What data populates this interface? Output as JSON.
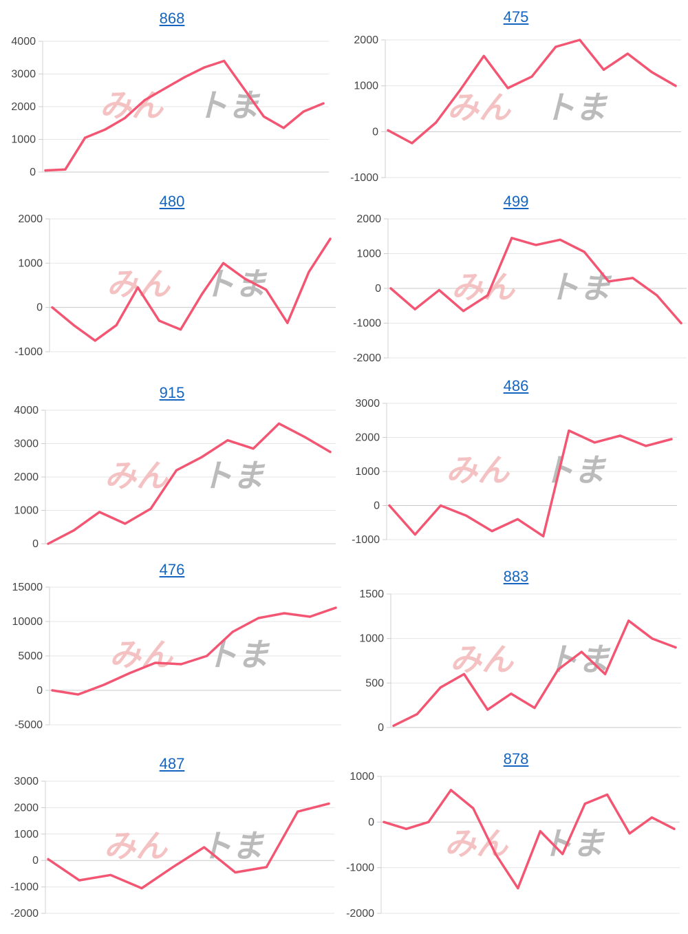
{
  "style": {
    "line_color": "#f25673",
    "grid_color": "#e6e6e6",
    "title_color": "#1565c0",
    "watermark_pink": "#f3b8b8",
    "watermark_gray": "#b0b0b0"
  },
  "watermark": {
    "part1": "みん",
    "part2": "ト",
    "part3": "ま"
  },
  "chart_data": [
    {
      "type": "line",
      "title": "868",
      "ylim": [
        0,
        4000
      ],
      "yticks": [
        "4000",
        "3000",
        "2000",
        "1000",
        "0"
      ],
      "series": [
        {
          "values": [
            50,
            80,
            1050,
            1300,
            1650,
            2200,
            2550,
            2900,
            3200,
            3400,
            2550,
            1700,
            1350,
            1850,
            2100
          ]
        }
      ]
    },
    {
      "type": "line",
      "title": "475",
      "ylim": [
        -1000,
        2000
      ],
      "yticks": [
        "2000",
        "1000",
        "0",
        "-1000"
      ],
      "series": [
        {
          "values": [
            30,
            -250,
            200,
            900,
            1650,
            950,
            1200,
            1850,
            2000,
            1350,
            1700,
            1300,
            1000
          ]
        }
      ]
    },
    {
      "type": "line",
      "title": "480",
      "ylim": [
        -1000,
        2000
      ],
      "yticks": [
        "2000",
        "1000",
        "0",
        "-1000"
      ],
      "series": [
        {
          "values": [
            0,
            -400,
            -750,
            -400,
            450,
            -300,
            -500,
            300,
            1000,
            650,
            400,
            -350,
            800,
            1550
          ]
        }
      ]
    },
    {
      "type": "line",
      "title": "499",
      "ylim": [
        -2000,
        2000
      ],
      "yticks": [
        "2000",
        "1000",
        "0",
        "-1000",
        "-2000"
      ],
      "series": [
        {
          "values": [
            0,
            -600,
            -50,
            -650,
            -200,
            1450,
            1250,
            1400,
            1050,
            200,
            300,
            -200,
            -1000
          ]
        }
      ]
    },
    {
      "type": "line",
      "title": "915",
      "ylim": [
        0,
        4000
      ],
      "yticks": [
        "4000",
        "3000",
        "2000",
        "1000",
        "0"
      ],
      "series": [
        {
          "values": [
            0,
            400,
            950,
            600,
            1050,
            2200,
            2600,
            3100,
            2850,
            3600,
            3200,
            2750
          ]
        }
      ]
    },
    {
      "type": "line",
      "title": "486",
      "ylim": [
        -1000,
        3000
      ],
      "yticks": [
        "3000",
        "2000",
        "1000",
        "0",
        "-1000"
      ],
      "series": [
        {
          "values": [
            0,
            -850,
            0,
            -300,
            -750,
            -400,
            -900,
            2200,
            1850,
            2050,
            1750,
            1950
          ]
        }
      ]
    },
    {
      "type": "line",
      "title": "476",
      "ylim": [
        -5000,
        15000
      ],
      "yticks": [
        "15000",
        "10000",
        "5000",
        "0",
        "-5000"
      ],
      "series": [
        {
          "values": [
            0,
            -600,
            800,
            2500,
            4000,
            3800,
            5000,
            8500,
            10500,
            11200,
            10700,
            12000
          ]
        }
      ]
    },
    {
      "type": "line",
      "title": "883",
      "ylim": [
        0,
        1500
      ],
      "yticks": [
        "1500",
        "1000",
        "500",
        "0"
      ],
      "series": [
        {
          "values": [
            20,
            150,
            450,
            600,
            200,
            380,
            220,
            650,
            850,
            600,
            1200,
            1000,
            900
          ]
        }
      ]
    },
    {
      "type": "line",
      "title": "487",
      "ylim": [
        -2000,
        3000
      ],
      "yticks": [
        "3000",
        "2000",
        "1000",
        "0",
        "-1000",
        "-2000"
      ],
      "series": [
        {
          "values": [
            50,
            -750,
            -550,
            -1050,
            -250,
            500,
            -450,
            -250,
            1850,
            2150
          ]
        }
      ]
    },
    {
      "type": "line",
      "title": "878",
      "ylim": [
        -2000,
        1000
      ],
      "yticks": [
        "1000",
        "0",
        "-1000",
        "-2000"
      ],
      "series": [
        {
          "values": [
            0,
            -150,
            0,
            700,
            300,
            -700,
            -1450,
            -200,
            -700,
            400,
            600,
            -250,
            100,
            -150
          ]
        }
      ]
    }
  ]
}
